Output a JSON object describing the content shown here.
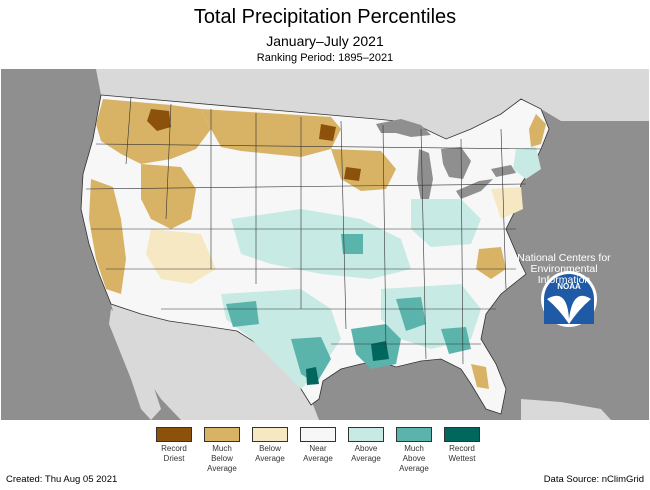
{
  "header": {
    "title": "Total Precipitation Percentiles",
    "period": "January–July 2021",
    "ranking": "Ranking Period: 1895–2021"
  },
  "map": {
    "background_color": "#8f8f8f",
    "ocean_color": "#8f8f8f",
    "lakes_color": "#8f8f8f",
    "canada_mexico_color": "#d9d9d9",
    "us_base_color": "#f7f7f7",
    "category_colors": {
      "record_driest": "#8c510a",
      "much_below": "#d8b365",
      "below": "#f6e8c3",
      "near": "#f7f7f7",
      "above": "#c7eae5",
      "much_above": "#5ab4ac",
      "record_wettest": "#01665e"
    }
  },
  "noaa": {
    "logo_text": "NOAA",
    "caption_lines": [
      "National Centers for",
      "Environmental",
      "Information"
    ]
  },
  "legend": {
    "items": [
      {
        "label_lines": [
          "Record",
          "Driest"
        ],
        "color": "#8c510a"
      },
      {
        "label_lines": [
          "Much",
          "Below",
          "Average"
        ],
        "color": "#d8b365"
      },
      {
        "label_lines": [
          "Below",
          "Average"
        ],
        "color": "#f6e8c3"
      },
      {
        "label_lines": [
          "Near",
          "Average"
        ],
        "color": "#f7f7f7"
      },
      {
        "label_lines": [
          "Above",
          "Average"
        ],
        "color": "#c7eae5"
      },
      {
        "label_lines": [
          "Much",
          "Above",
          "Average"
        ],
        "color": "#5ab4ac"
      },
      {
        "label_lines": [
          "Record",
          "Wettest"
        ],
        "color": "#01665e"
      }
    ]
  },
  "footer": {
    "created": "Created: Thu Aug 05 2021",
    "source": "Data Source: nClimGrid"
  }
}
